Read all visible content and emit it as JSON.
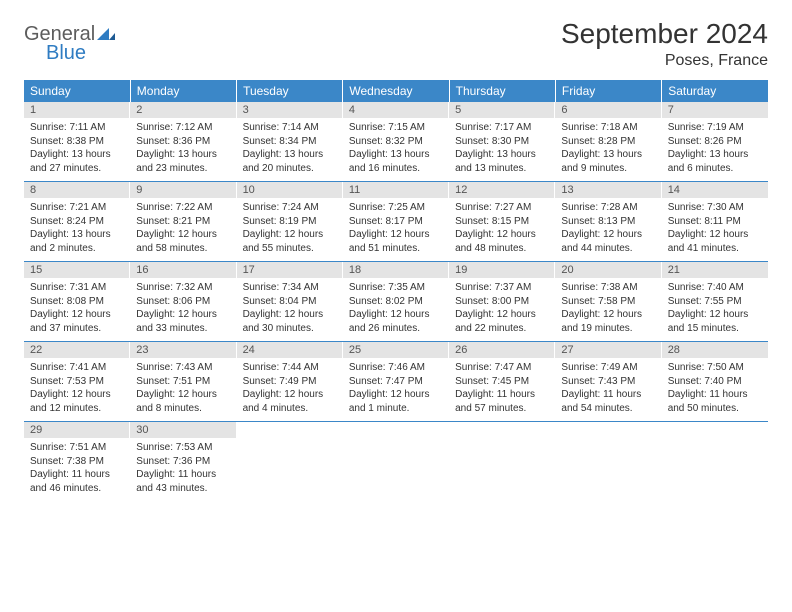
{
  "brand": {
    "general": "General",
    "blue": "Blue"
  },
  "colors": {
    "header_bg": "#3b87c8",
    "header_text": "#ffffff",
    "daynum_bg": "#e4e4e4",
    "daynum_text": "#555555",
    "body_text": "#333333",
    "rule": "#3b87c8",
    "logo_gray": "#5c5c5c",
    "logo_blue": "#2f7cc2"
  },
  "title": "September 2024",
  "location": "Poses, France",
  "weekdays": [
    "Sunday",
    "Monday",
    "Tuesday",
    "Wednesday",
    "Thursday",
    "Friday",
    "Saturday"
  ],
  "typography": {
    "title_fontsize": 28,
    "location_fontsize": 16,
    "weekday_fontsize": 12,
    "daynum_fontsize": 11,
    "cell_fontsize": 10
  },
  "weeks": [
    [
      {
        "n": "1",
        "sr": "Sunrise: 7:11 AM",
        "ss": "Sunset: 8:38 PM",
        "d1": "Daylight: 13 hours",
        "d2": "and 27 minutes."
      },
      {
        "n": "2",
        "sr": "Sunrise: 7:12 AM",
        "ss": "Sunset: 8:36 PM",
        "d1": "Daylight: 13 hours",
        "d2": "and 23 minutes."
      },
      {
        "n": "3",
        "sr": "Sunrise: 7:14 AM",
        "ss": "Sunset: 8:34 PM",
        "d1": "Daylight: 13 hours",
        "d2": "and 20 minutes."
      },
      {
        "n": "4",
        "sr": "Sunrise: 7:15 AM",
        "ss": "Sunset: 8:32 PM",
        "d1": "Daylight: 13 hours",
        "d2": "and 16 minutes."
      },
      {
        "n": "5",
        "sr": "Sunrise: 7:17 AM",
        "ss": "Sunset: 8:30 PM",
        "d1": "Daylight: 13 hours",
        "d2": "and 13 minutes."
      },
      {
        "n": "6",
        "sr": "Sunrise: 7:18 AM",
        "ss": "Sunset: 8:28 PM",
        "d1": "Daylight: 13 hours",
        "d2": "and 9 minutes."
      },
      {
        "n": "7",
        "sr": "Sunrise: 7:19 AM",
        "ss": "Sunset: 8:26 PM",
        "d1": "Daylight: 13 hours",
        "d2": "and 6 minutes."
      }
    ],
    [
      {
        "n": "8",
        "sr": "Sunrise: 7:21 AM",
        "ss": "Sunset: 8:24 PM",
        "d1": "Daylight: 13 hours",
        "d2": "and 2 minutes."
      },
      {
        "n": "9",
        "sr": "Sunrise: 7:22 AM",
        "ss": "Sunset: 8:21 PM",
        "d1": "Daylight: 12 hours",
        "d2": "and 58 minutes."
      },
      {
        "n": "10",
        "sr": "Sunrise: 7:24 AM",
        "ss": "Sunset: 8:19 PM",
        "d1": "Daylight: 12 hours",
        "d2": "and 55 minutes."
      },
      {
        "n": "11",
        "sr": "Sunrise: 7:25 AM",
        "ss": "Sunset: 8:17 PM",
        "d1": "Daylight: 12 hours",
        "d2": "and 51 minutes."
      },
      {
        "n": "12",
        "sr": "Sunrise: 7:27 AM",
        "ss": "Sunset: 8:15 PM",
        "d1": "Daylight: 12 hours",
        "d2": "and 48 minutes."
      },
      {
        "n": "13",
        "sr": "Sunrise: 7:28 AM",
        "ss": "Sunset: 8:13 PM",
        "d1": "Daylight: 12 hours",
        "d2": "and 44 minutes."
      },
      {
        "n": "14",
        "sr": "Sunrise: 7:30 AM",
        "ss": "Sunset: 8:11 PM",
        "d1": "Daylight: 12 hours",
        "d2": "and 41 minutes."
      }
    ],
    [
      {
        "n": "15",
        "sr": "Sunrise: 7:31 AM",
        "ss": "Sunset: 8:08 PM",
        "d1": "Daylight: 12 hours",
        "d2": "and 37 minutes."
      },
      {
        "n": "16",
        "sr": "Sunrise: 7:32 AM",
        "ss": "Sunset: 8:06 PM",
        "d1": "Daylight: 12 hours",
        "d2": "and 33 minutes."
      },
      {
        "n": "17",
        "sr": "Sunrise: 7:34 AM",
        "ss": "Sunset: 8:04 PM",
        "d1": "Daylight: 12 hours",
        "d2": "and 30 minutes."
      },
      {
        "n": "18",
        "sr": "Sunrise: 7:35 AM",
        "ss": "Sunset: 8:02 PM",
        "d1": "Daylight: 12 hours",
        "d2": "and 26 minutes."
      },
      {
        "n": "19",
        "sr": "Sunrise: 7:37 AM",
        "ss": "Sunset: 8:00 PM",
        "d1": "Daylight: 12 hours",
        "d2": "and 22 minutes."
      },
      {
        "n": "20",
        "sr": "Sunrise: 7:38 AM",
        "ss": "Sunset: 7:58 PM",
        "d1": "Daylight: 12 hours",
        "d2": "and 19 minutes."
      },
      {
        "n": "21",
        "sr": "Sunrise: 7:40 AM",
        "ss": "Sunset: 7:55 PM",
        "d1": "Daylight: 12 hours",
        "d2": "and 15 minutes."
      }
    ],
    [
      {
        "n": "22",
        "sr": "Sunrise: 7:41 AM",
        "ss": "Sunset: 7:53 PM",
        "d1": "Daylight: 12 hours",
        "d2": "and 12 minutes."
      },
      {
        "n": "23",
        "sr": "Sunrise: 7:43 AM",
        "ss": "Sunset: 7:51 PM",
        "d1": "Daylight: 12 hours",
        "d2": "and 8 minutes."
      },
      {
        "n": "24",
        "sr": "Sunrise: 7:44 AM",
        "ss": "Sunset: 7:49 PM",
        "d1": "Daylight: 12 hours",
        "d2": "and 4 minutes."
      },
      {
        "n": "25",
        "sr": "Sunrise: 7:46 AM",
        "ss": "Sunset: 7:47 PM",
        "d1": "Daylight: 12 hours",
        "d2": "and 1 minute."
      },
      {
        "n": "26",
        "sr": "Sunrise: 7:47 AM",
        "ss": "Sunset: 7:45 PM",
        "d1": "Daylight: 11 hours",
        "d2": "and 57 minutes."
      },
      {
        "n": "27",
        "sr": "Sunrise: 7:49 AM",
        "ss": "Sunset: 7:43 PM",
        "d1": "Daylight: 11 hours",
        "d2": "and 54 minutes."
      },
      {
        "n": "28",
        "sr": "Sunrise: 7:50 AM",
        "ss": "Sunset: 7:40 PM",
        "d1": "Daylight: 11 hours",
        "d2": "and 50 minutes."
      }
    ],
    [
      {
        "n": "29",
        "sr": "Sunrise: 7:51 AM",
        "ss": "Sunset: 7:38 PM",
        "d1": "Daylight: 11 hours",
        "d2": "and 46 minutes."
      },
      {
        "n": "30",
        "sr": "Sunrise: 7:53 AM",
        "ss": "Sunset: 7:36 PM",
        "d1": "Daylight: 11 hours",
        "d2": "and 43 minutes."
      },
      {
        "empty": true
      },
      {
        "empty": true
      },
      {
        "empty": true
      },
      {
        "empty": true
      },
      {
        "empty": true
      }
    ]
  ]
}
